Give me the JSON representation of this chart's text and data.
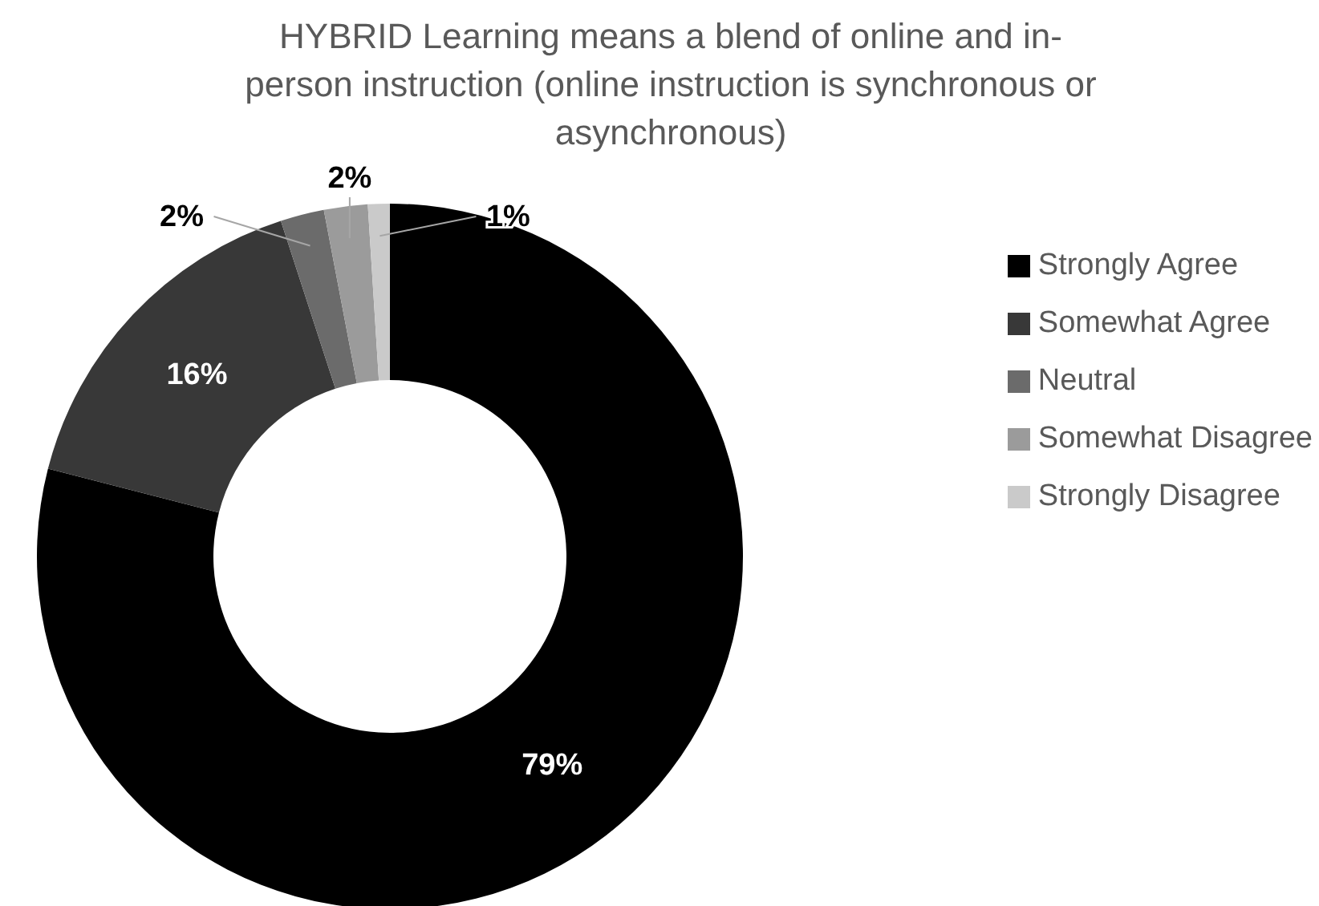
{
  "chart_data": {
    "type": "donut",
    "title": "HYBRID Learning means a blend of online and in-person instruction (online instruction is synchronous or asynchronous)",
    "categories": [
      "Strongly Agree",
      "Somewhat Agree",
      "Neutral",
      "Somewhat Disagree",
      "Strongly Disagree"
    ],
    "values": [
      79,
      16,
      2,
      2,
      1
    ],
    "colors": [
      "#000000",
      "#383838",
      "#6b6b6b",
      "#9b9b9b",
      "#cacaca"
    ],
    "value_labels": [
      "79%",
      "16%",
      "2%",
      "2%",
      "1%"
    ],
    "legend": "right"
  }
}
